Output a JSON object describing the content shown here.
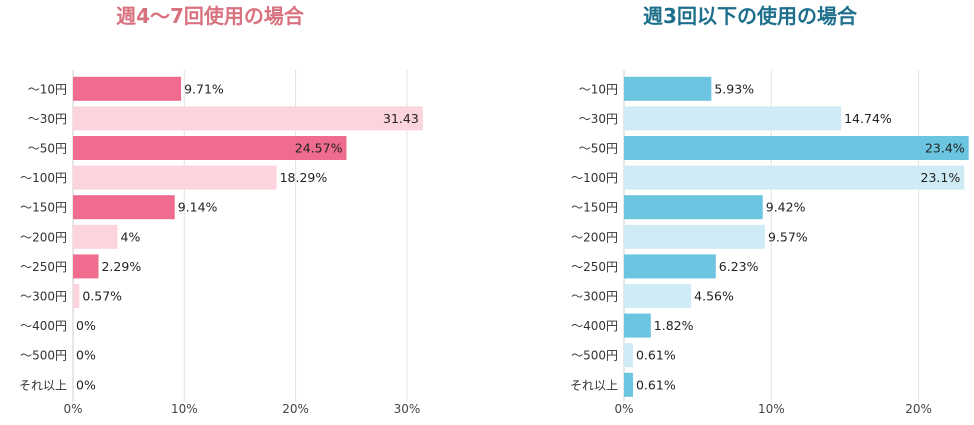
{
  "chart_data": [
    {
      "type": "bar",
      "orientation": "horizontal",
      "title": "週4〜7回使用の場合",
      "title_color": "#d9727f",
      "colors": [
        "#f06c8e",
        "#fbd4dd"
      ],
      "categories": [
        "～10円",
        "～30円",
        "～50円",
        "～100円",
        "～150円",
        "～200円",
        "～250円",
        "～300円",
        "～400円",
        "～500円",
        "それ以上"
      ],
      "values": [
        9.71,
        31.43,
        24.57,
        18.29,
        9.14,
        4,
        2.29,
        0.57,
        0,
        0,
        0
      ],
      "value_labels": [
        "9.71%",
        "31.43",
        "24.57%",
        "18.29%",
        "9.14%",
        "4%",
        "2.29%",
        "0.57%",
        "0%",
        "0%",
        "0%"
      ],
      "x_ticks": [
        "0%",
        "10%",
        "20%",
        "30%"
      ],
      "xlim": [
        0,
        31.43
      ],
      "grid": true
    },
    {
      "type": "bar",
      "orientation": "horizontal",
      "title": "週3回以下の使用の場合",
      "title_color": "#1d6f8c",
      "colors": [
        "#6bc5e0",
        "#cfebf5"
      ],
      "categories": [
        "～10円",
        "～30円",
        "～50円",
        "～100円",
        "～150円",
        "～200円",
        "～250円",
        "～300円",
        "～400円",
        "～500円",
        "それ以上"
      ],
      "values": [
        5.93,
        14.74,
        23.4,
        23.1,
        9.42,
        9.57,
        6.23,
        4.56,
        1.82,
        0.61,
        0.61
      ],
      "value_labels": [
        "5.93%",
        "14.74%",
        "23.4%",
        "23.1%",
        "9.42%",
        "9.57%",
        "6.23%",
        "4.56%",
        "1.82%",
        "0.61%",
        "0.61%"
      ],
      "x_ticks": [
        "0%",
        "10%",
        "20%"
      ],
      "xlim": [
        0,
        23.4
      ],
      "grid": true
    }
  ]
}
